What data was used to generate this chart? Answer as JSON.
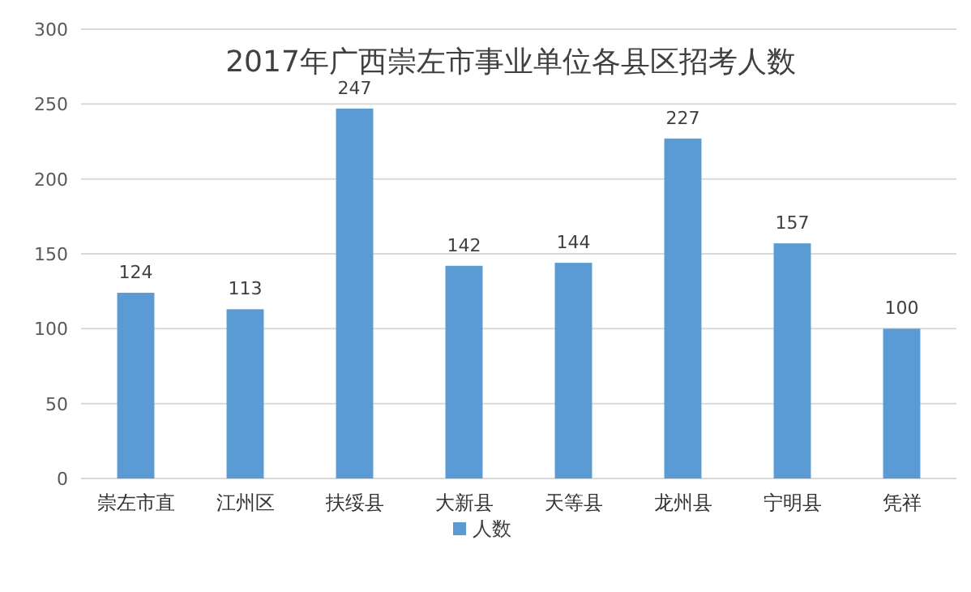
{
  "chart_data": {
    "type": "bar",
    "title": "2017年广西崇左市事业单位各县区招考人数",
    "categories": [
      "崇左市直",
      "江州区",
      "扶绥县",
      "大新县",
      "天等县",
      "龙州县",
      "宁明县",
      "凭祥"
    ],
    "series": [
      {
        "name": "人数",
        "color": "#5b9bd5",
        "values": [
          124,
          113,
          247,
          142,
          144,
          227,
          157,
          100
        ]
      }
    ],
    "ylim": [
      0,
      300
    ],
    "yticks": [
      0,
      50,
      100,
      150,
      200,
      250,
      300
    ],
    "grid": "y",
    "legend": "bottom",
    "data_labels": true
  }
}
